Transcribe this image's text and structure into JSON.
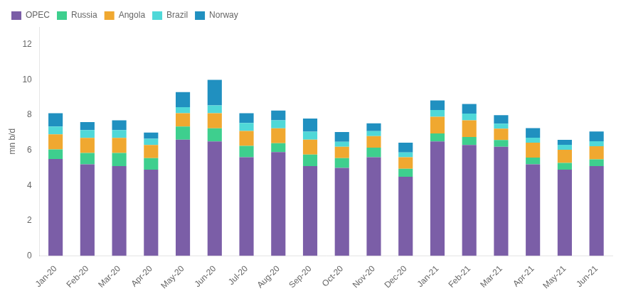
{
  "chart_data": {
    "type": "bar",
    "stacked": true,
    "ylabel": "mn b/d",
    "categories": [
      "Jan-20",
      "Feb-20",
      "Mar-20",
      "Apr-20",
      "May-20",
      "Jun-20",
      "Jul-20",
      "Aug-20",
      "Sep-20",
      "Oct-20",
      "Nov-20",
      "Dec-20",
      "Jan-21",
      "Feb-21",
      "Mar-21",
      "Apr-21",
      "May-21",
      "Jun-21"
    ],
    "series": [
      {
        "name": "OPEC",
        "color": "#7b5ea7",
        "values": [
          5.5,
          5.2,
          5.1,
          4.9,
          6.6,
          6.5,
          5.6,
          5.9,
          5.1,
          5.0,
          5.6,
          4.5,
          6.5,
          6.3,
          6.2,
          5.2,
          4.9,
          5.1
        ]
      },
      {
        "name": "Russia",
        "color": "#3ecf8e",
        "values": [
          0.55,
          0.65,
          0.75,
          0.65,
          0.75,
          0.75,
          0.65,
          0.5,
          0.65,
          0.55,
          0.55,
          0.45,
          0.45,
          0.45,
          0.38,
          0.38,
          0.38,
          0.38
        ]
      },
      {
        "name": "Angola",
        "color": "#f0a830",
        "values": [
          0.85,
          0.85,
          0.85,
          0.75,
          0.75,
          0.85,
          0.85,
          0.85,
          0.85,
          0.65,
          0.65,
          0.65,
          0.95,
          0.95,
          0.65,
          0.85,
          0.75,
          0.75
        ]
      },
      {
        "name": "Brazil",
        "color": "#4fd8d8",
        "values": [
          0.45,
          0.45,
          0.45,
          0.35,
          0.35,
          0.45,
          0.45,
          0.45,
          0.45,
          0.28,
          0.28,
          0.28,
          0.38,
          0.38,
          0.28,
          0.28,
          0.28,
          0.28
        ]
      },
      {
        "name": "Norway",
        "color": "#2090c0",
        "values": [
          0.75,
          0.45,
          0.55,
          0.35,
          0.85,
          1.45,
          0.55,
          0.55,
          0.75,
          0.55,
          0.45,
          0.55,
          0.55,
          0.55,
          0.48,
          0.55,
          0.28,
          0.55
        ]
      }
    ],
    "ylim": [
      0,
      13
    ],
    "yticks": [
      0,
      2,
      4,
      6,
      8,
      10,
      12
    ],
    "grid": false,
    "legend": "upper left"
  }
}
